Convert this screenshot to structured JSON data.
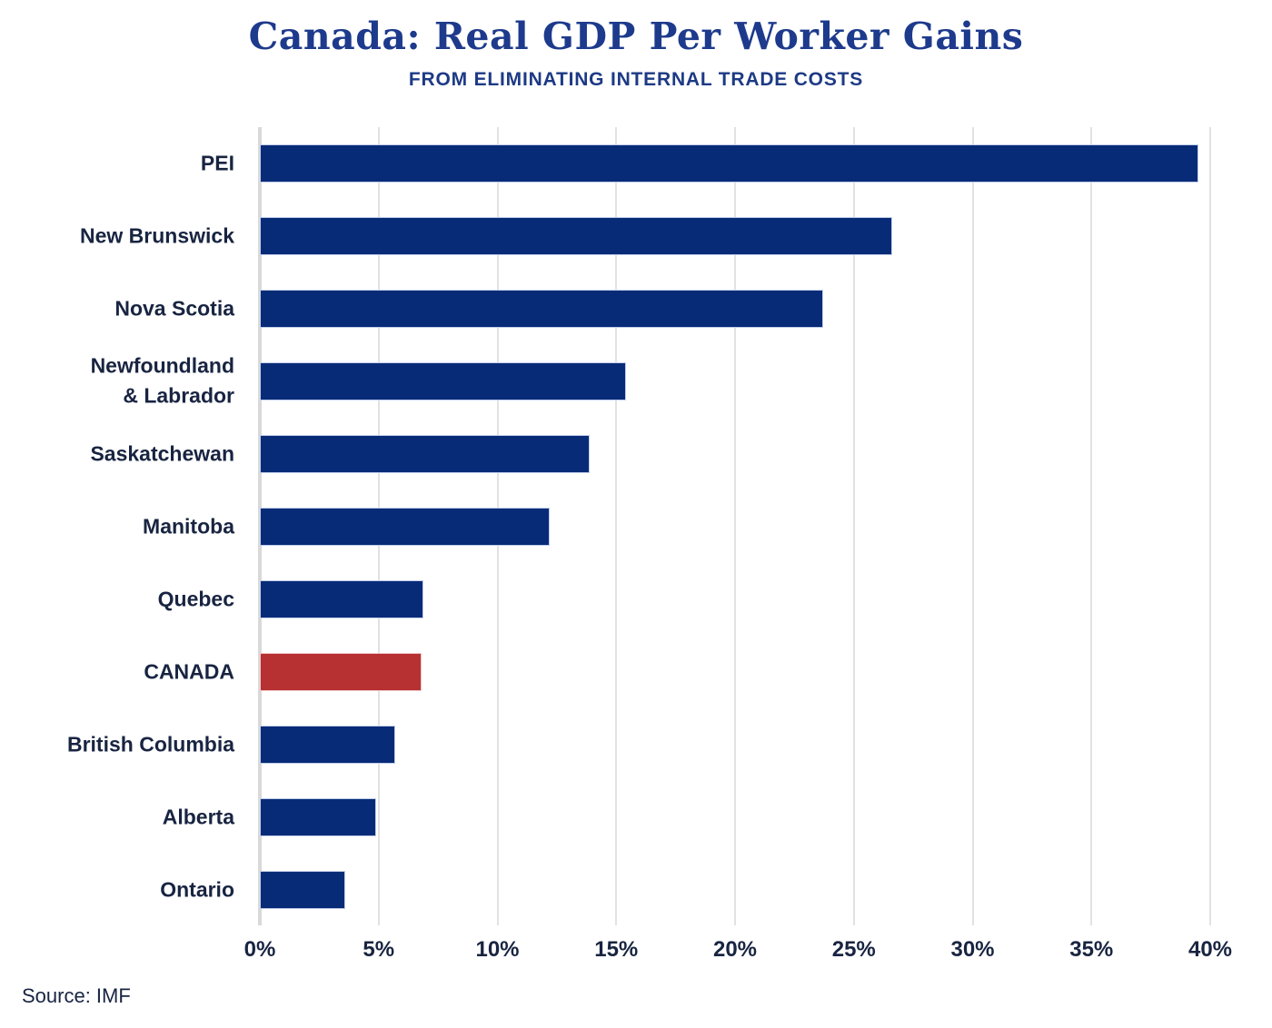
{
  "header": {
    "title": "Canada: Real GDP Per Worker Gains",
    "subtitle": "FROM ELIMINATING INTERNAL TRADE COSTS"
  },
  "source": {
    "label": "Source: IMF"
  },
  "colors": {
    "title_navy": "#1d3a8c",
    "subtitle_navy": "#1d3a85",
    "text_navy": "#182441",
    "bar_navy": "#082b78",
    "bar_navy_border": "#c2cee9",
    "bar_red": "#b73032",
    "bar_red_border": "#f0c8c8",
    "gridline": "#e2e2e2",
    "axis_line": "#d9d9d9"
  },
  "chart_data": {
    "type": "bar",
    "orientation": "horizontal",
    "title": "Canada: Real GDP Per Worker Gains",
    "subtitle": "FROM ELIMINATING INTERNAL TRADE COSTS",
    "categories": [
      "PEI",
      "New Brunswick",
      "Nova Scotia",
      "Newfoundland\n& Labrador",
      "Saskatchewan",
      "Manitoba",
      "Quebec",
      "CANADA",
      "British Columbia",
      "Alberta",
      "Ontario"
    ],
    "values": [
      39.5,
      26.6,
      23.7,
      15.4,
      13.9,
      12.2,
      6.9,
      6.8,
      5.7,
      4.9,
      3.6
    ],
    "unit": "%",
    "highlight_category": "CANADA",
    "x_ticks": [
      "0%",
      "5%",
      "10%",
      "15%",
      "20%",
      "25%",
      "30%",
      "35%",
      "40%"
    ],
    "x_tick_values": [
      0,
      5,
      10,
      15,
      20,
      25,
      30,
      35,
      40
    ],
    "xlim": [
      0,
      40
    ],
    "grid": "vertical",
    "legend": "none",
    "annotation": "Source: IMF"
  }
}
